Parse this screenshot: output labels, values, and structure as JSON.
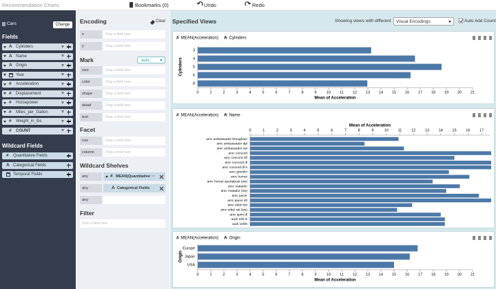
{
  "header": {
    "title": "Recommendation Charts",
    "bookmarks": "Bookmarks (0)",
    "undo": "Undo",
    "redo": "Redo"
  },
  "sidebar": {
    "dataset": "Cars",
    "change": "Change",
    "fields_title": "Fields",
    "fields": [
      {
        "icon": "A",
        "name": "Cylinders"
      },
      {
        "icon": "A",
        "name": "Name"
      },
      {
        "icon": "A",
        "name": "Origin"
      },
      {
        "name": "Year"
      },
      {
        "icon": "#",
        "name": "Acceleration"
      },
      {
        "icon": "#",
        "name": "Displacement"
      },
      {
        "icon": "#",
        "name": "Horsepower"
      },
      {
        "icon": "#",
        "name": "Miles_per_Gallon"
      },
      {
        "icon": "#",
        "name": "Weight_in_lbs"
      },
      {
        "icon": "#",
        "name": "COUNT"
      }
    ],
    "wildcard_title": "Wildcard Fields",
    "wildcard_fields": [
      {
        "icon": "#",
        "name": "Quantitative Fields"
      },
      {
        "icon": "A",
        "name": "Categorical Fields"
      },
      {
        "name": "Temporal Fields"
      }
    ]
  },
  "encoding": {
    "title": "Encoding",
    "clear": "Clear",
    "placeholder": "Drop a field here",
    "position_shelves": [
      "x",
      "y"
    ],
    "mark_title": "Mark",
    "mark_type": "auto",
    "mark_shelves": [
      "size",
      "color",
      "shape",
      "detail",
      "text"
    ],
    "facet_title": "Facet",
    "facet_shelves": [
      "row",
      "column"
    ],
    "wildcard_title": "Wildcard Shelves",
    "wildcard_shelves": [
      {
        "channel": "any",
        "icon": "#",
        "field": "MEAN(Quantitative ···"
      },
      {
        "channel": "any",
        "icon": "A",
        "field": "Categorical Fields"
      },
      {
        "channel": "any"
      }
    ],
    "filter_title": "Filter"
  },
  "views": {
    "title": "Specified Views",
    "showing": "Showing views with different",
    "select": "Visual Encodings",
    "auto_add": "Auto Add Count"
  },
  "chart_data": [
    {
      "type": "bar",
      "orientation": "horizontal",
      "encodings": [
        {
          "icon": "#",
          "label": "MEAN(Acceleration)"
        },
        {
          "icon": "A",
          "label": "Cylinders"
        }
      ],
      "categories": [
        "3",
        "4",
        "5",
        "6",
        "8"
      ],
      "values": [
        13.25,
        16.6,
        18.63,
        16.26,
        12.96
      ],
      "color": "#4c78a8",
      "xlim": [
        0,
        21
      ],
      "xticks": [
        0,
        1,
        2,
        3,
        4,
        5,
        6,
        7,
        8,
        9,
        10,
        11,
        12,
        13,
        14,
        15,
        16,
        17,
        18,
        19,
        20,
        21
      ],
      "xlabel": "Mean of Acceleration",
      "ylabel": "Cylinders",
      "x_axis_position": "bottom"
    },
    {
      "type": "bar",
      "orientation": "horizontal",
      "encodings": [
        {
          "icon": "#",
          "label": "MEAN(Acceleration)"
        },
        {
          "icon": "A",
          "label": "Name"
        }
      ],
      "categories": [
        "amc ambassador brougham",
        "amc ambassador dpl",
        "amc ambassador sst",
        "amc concord",
        "amc concord d/l",
        "amc concord dl",
        "amc concord dl 6",
        "amc gremlin",
        "amc hornet",
        "amc hornet sportabout (sw)",
        "amc matador",
        "amc matador (sw)",
        "amc pacer",
        "amc pacer d/l",
        "amc rebel sst",
        "amc rebel sst (sw)",
        "amc spirit dl",
        "audi 100 ls",
        "audi 100ls"
      ],
      "values": [
        10.9,
        8.4,
        11.3,
        18.2,
        15.0,
        18.3,
        18.0,
        14.6,
        16.1,
        13.4,
        15.4,
        14.4,
        16.8,
        17.7,
        11.9,
        10.8,
        14.0,
        14.3,
        14.3
      ],
      "color": "#4c78a8",
      "xlim": [
        0,
        17.6
      ],
      "xticks": [
        0,
        1,
        2,
        3,
        4,
        5,
        6,
        7,
        8,
        9,
        10,
        11,
        12,
        13,
        14,
        15,
        16,
        17
      ],
      "xlabel": "Mean of Acceleration",
      "x_axis_position": "top"
    },
    {
      "type": "bar",
      "orientation": "horizontal",
      "encodings": [
        {
          "icon": "#",
          "label": "MEAN(Acceleration)"
        },
        {
          "icon": "A",
          "label": "Origin"
        }
      ],
      "categories": [
        "Europe",
        "Japan",
        "USA"
      ],
      "values": [
        16.8,
        16.2,
        15.0
      ],
      "color": "#4c78a8",
      "xlim": [
        0,
        21
      ],
      "xticks": [
        0,
        1,
        2,
        3,
        4,
        5,
        6,
        7,
        8,
        9,
        10,
        11,
        12,
        13,
        14,
        15,
        16,
        17,
        18,
        19,
        20,
        21
      ],
      "xlabel": "Mean of Acceleration",
      "ylabel": "Origin",
      "x_axis_position": "bottom"
    }
  ]
}
